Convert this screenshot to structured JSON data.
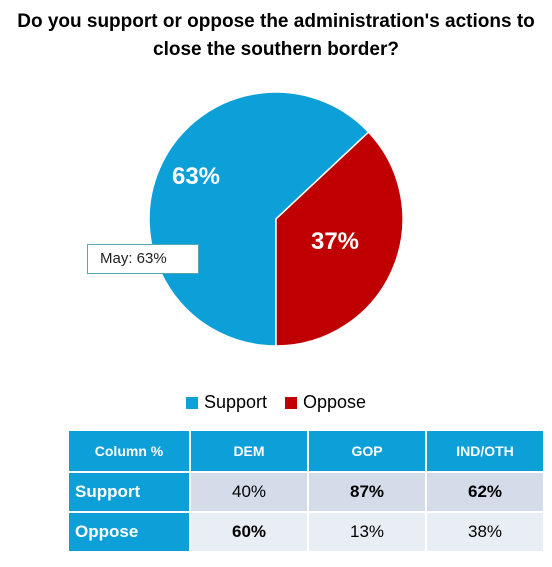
{
  "title": "Do you support or oppose the administration's actions to close the southern border?",
  "colors": {
    "support": "#0d9fd8",
    "oppose": "#c00000"
  },
  "chart_data": {
    "type": "pie",
    "slices": [
      {
        "label": "Support",
        "value": 63,
        "display": "63%",
        "color": "#0d9fd8"
      },
      {
        "label": "Oppose",
        "value": 37,
        "display": "37%",
        "color": "#c00000"
      }
    ],
    "callout": "May: 63%",
    "legend": [
      "Support",
      "Oppose"
    ],
    "legend_position": "bottom"
  },
  "table": {
    "header": [
      "Column %",
      "DEM",
      "GOP",
      "IND/OTH"
    ],
    "rows": [
      {
        "label": "Support",
        "cells": [
          "40%",
          "87%",
          "62%"
        ],
        "bold": [
          false,
          true,
          true
        ]
      },
      {
        "label": "Oppose",
        "cells": [
          "60%",
          "13%",
          "38%"
        ],
        "bold": [
          true,
          false,
          false
        ]
      }
    ]
  }
}
